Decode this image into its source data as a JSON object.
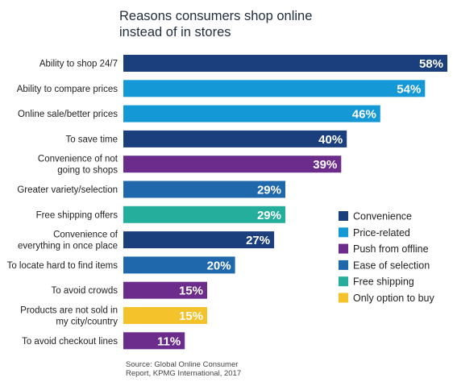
{
  "chart_data": {
    "type": "bar",
    "orientation": "horizontal",
    "title": "Reasons consumers shop online instead of in stores",
    "title_lines": [
      "Reasons consumers shop online",
      "instead of in stores"
    ],
    "value_suffix": "%",
    "categories": [
      "Ability to shop 24/7",
      "Ability to compare prices",
      "Online sale/better prices",
      "To save time",
      "Convenience of not going to shops",
      "Greater variety/selection",
      "Free shipping offers",
      "Convenience of everything in once place",
      "To locate hard to find items",
      "To avoid crowds",
      "Products are not sold in my city/country",
      "To avoid checkout lines"
    ],
    "category_lines": [
      [
        "Ability to shop 24/7"
      ],
      [
        "Ability to compare prices"
      ],
      [
        "Online sale/better prices"
      ],
      [
        "To save time"
      ],
      [
        "Convenience of not",
        "going to shops"
      ],
      [
        "Greater variety/selection"
      ],
      [
        "Free shipping offers"
      ],
      [
        "Convenience of",
        "everything in once place"
      ],
      [
        "To locate hard to find items"
      ],
      [
        "To avoid crowds"
      ],
      [
        "Products are not sold in",
        "my city/country"
      ],
      [
        "To avoid checkout lines"
      ]
    ],
    "values": [
      58,
      54,
      46,
      40,
      39,
      29,
      29,
      27,
      20,
      15,
      15,
      11
    ],
    "bar_groups": [
      "Convenience",
      "Price-related",
      "Price-related",
      "Convenience",
      "Push from offline",
      "Ease of selection",
      "Free shipping",
      "Convenience",
      "Ease of selection",
      "Push from offline",
      "Only option to buy",
      "Push from offline"
    ],
    "xlim": [
      0,
      58
    ],
    "legend": {
      "placement": "right",
      "entries": [
        {
          "name": "Convenience",
          "color": "#1b3f7c"
        },
        {
          "name": "Price-related",
          "color": "#1499d6"
        },
        {
          "name": "Push from offline",
          "color": "#6c2c8c"
        },
        {
          "name": "Ease of selection",
          "color": "#1f68ab"
        },
        {
          "name": "Free shipping",
          "color": "#26ae9c"
        },
        {
          "name": "Only option to buy",
          "color": "#f4c22b"
        }
      ]
    },
    "source_lines": [
      "Source: Global Online Consumer",
      "Report, KPMG International, 2017"
    ]
  }
}
